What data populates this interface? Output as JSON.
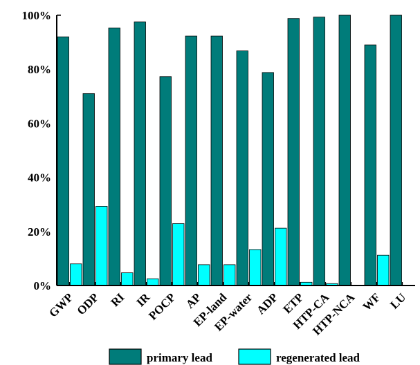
{
  "chart_data": {
    "type": "bar",
    "title": "",
    "xlabel": "",
    "ylabel": "",
    "categories": [
      "GWP",
      "ODP",
      "RI",
      "IR",
      "POCP",
      "AP",
      "EP-land",
      "EP-water",
      "ADP",
      "ETP",
      "HTP-CA",
      "HTP-NCA",
      "WF",
      "LU"
    ],
    "series": [
      {
        "name": "primary lead",
        "color": "#007c7a",
        "values": [
          92,
          71,
          95.3,
          97.5,
          77.3,
          92.3,
          92.3,
          86.8,
          78.8,
          98.8,
          99.3,
          100,
          89,
          100
        ]
      },
      {
        "name": "regenerated lead",
        "color": "#00ffff",
        "values": [
          8,
          29.3,
          4.7,
          2.5,
          22.9,
          7.7,
          7.7,
          13.3,
          21.2,
          1.2,
          0.7,
          0,
          11.2,
          0
        ]
      }
    ],
    "ylim": [
      0,
      100
    ],
    "yticks": [
      "0%",
      "20%",
      "40%",
      "60%",
      "80%",
      "100%"
    ],
    "ytick_values": [
      0,
      20,
      40,
      60,
      80,
      100
    ],
    "grid": false,
    "legend_position": "bottom"
  }
}
